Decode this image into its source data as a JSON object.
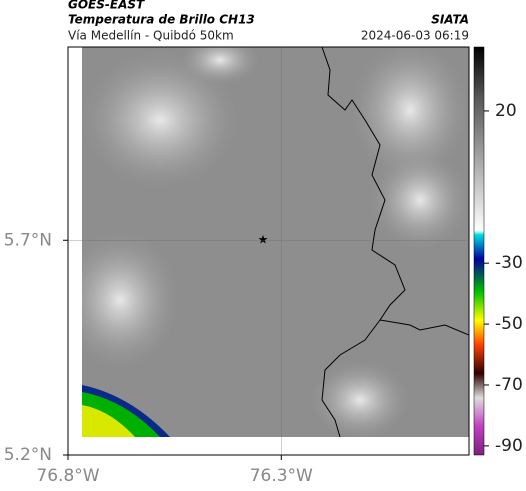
{
  "header": {
    "title": "GOES-EAST",
    "subtitle": "Temperatura de Brillo CH13",
    "location": "Vía Medellín - Quibdó 50km",
    "source": "SIATA",
    "datetime": "2024-06-03 06:19"
  },
  "map": {
    "xlim": [
      -76.8,
      -75.86
    ],
    "ylim": [
      5.2,
      6.15
    ],
    "xticks": [
      {
        "value": -76.8,
        "label": "76.8°W"
      },
      {
        "value": -76.3,
        "label": "76.3°W"
      }
    ],
    "yticks": [
      {
        "value": 5.7,
        "label": "5.7°N"
      },
      {
        "value": 5.2,
        "label": "5.2°N"
      }
    ],
    "grid": true
  },
  "colorbar": {
    "lim": [
      -93,
      41
    ],
    "ticks": [
      20,
      -30,
      -50,
      -70,
      -90
    ]
  }
}
